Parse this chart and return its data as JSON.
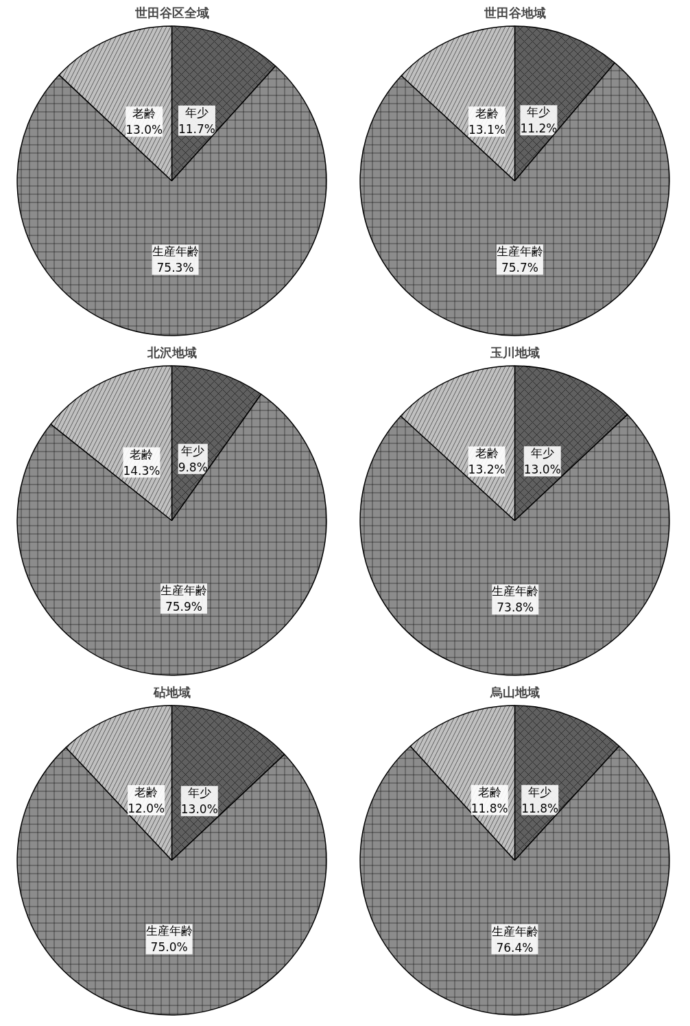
{
  "chart_data": [
    {
      "type": "pie",
      "title": "世田谷区全域",
      "categories": [
        "年少",
        "生産年齢",
        "老齢"
      ],
      "values": [
        11.7,
        75.3,
        13.0
      ],
      "value_labels": [
        "11.7%",
        "75.3%",
        "13.0%"
      ],
      "colors": [
        "#606060",
        "#8c8c8c",
        "#c0c0c0"
      ]
    },
    {
      "type": "pie",
      "title": "世田谷地域",
      "categories": [
        "年少",
        "生産年齢",
        "老齢"
      ],
      "values": [
        11.2,
        75.7,
        13.1
      ],
      "value_labels": [
        "11.2%",
        "75.7%",
        "13.1%"
      ],
      "colors": [
        "#606060",
        "#8c8c8c",
        "#c0c0c0"
      ]
    },
    {
      "type": "pie",
      "title": "北沢地域",
      "categories": [
        "年少",
        "生産年齢",
        "老齢"
      ],
      "values": [
        9.8,
        75.9,
        14.3
      ],
      "value_labels": [
        "9.8%",
        "75.9%",
        "14.3%"
      ],
      "colors": [
        "#606060",
        "#8c8c8c",
        "#c0c0c0"
      ]
    },
    {
      "type": "pie",
      "title": "玉川地域",
      "categories": [
        "年少",
        "生産年齢",
        "老齢"
      ],
      "values": [
        13.0,
        73.8,
        13.2
      ],
      "value_labels": [
        "13.0%",
        "73.8%",
        "13.2%"
      ],
      "colors": [
        "#606060",
        "#8c8c8c",
        "#c0c0c0"
      ]
    },
    {
      "type": "pie",
      "title": "砧地域",
      "categories": [
        "年少",
        "生産年齢",
        "老齢"
      ],
      "values": [
        13.0,
        75.0,
        12.0
      ],
      "value_labels": [
        "13.0%",
        "75.0%",
        "12.0%"
      ],
      "colors": [
        "#606060",
        "#8c8c8c",
        "#c0c0c0"
      ]
    },
    {
      "type": "pie",
      "title": "烏山地域",
      "categories": [
        "年少",
        "生産年齢",
        "老齢"
      ],
      "values": [
        11.8,
        76.4,
        11.8
      ],
      "value_labels": [
        "11.8%",
        "76.4%",
        "11.8%"
      ],
      "colors": [
        "#606060",
        "#8c8c8c",
        "#c0c0c0"
      ]
    }
  ]
}
